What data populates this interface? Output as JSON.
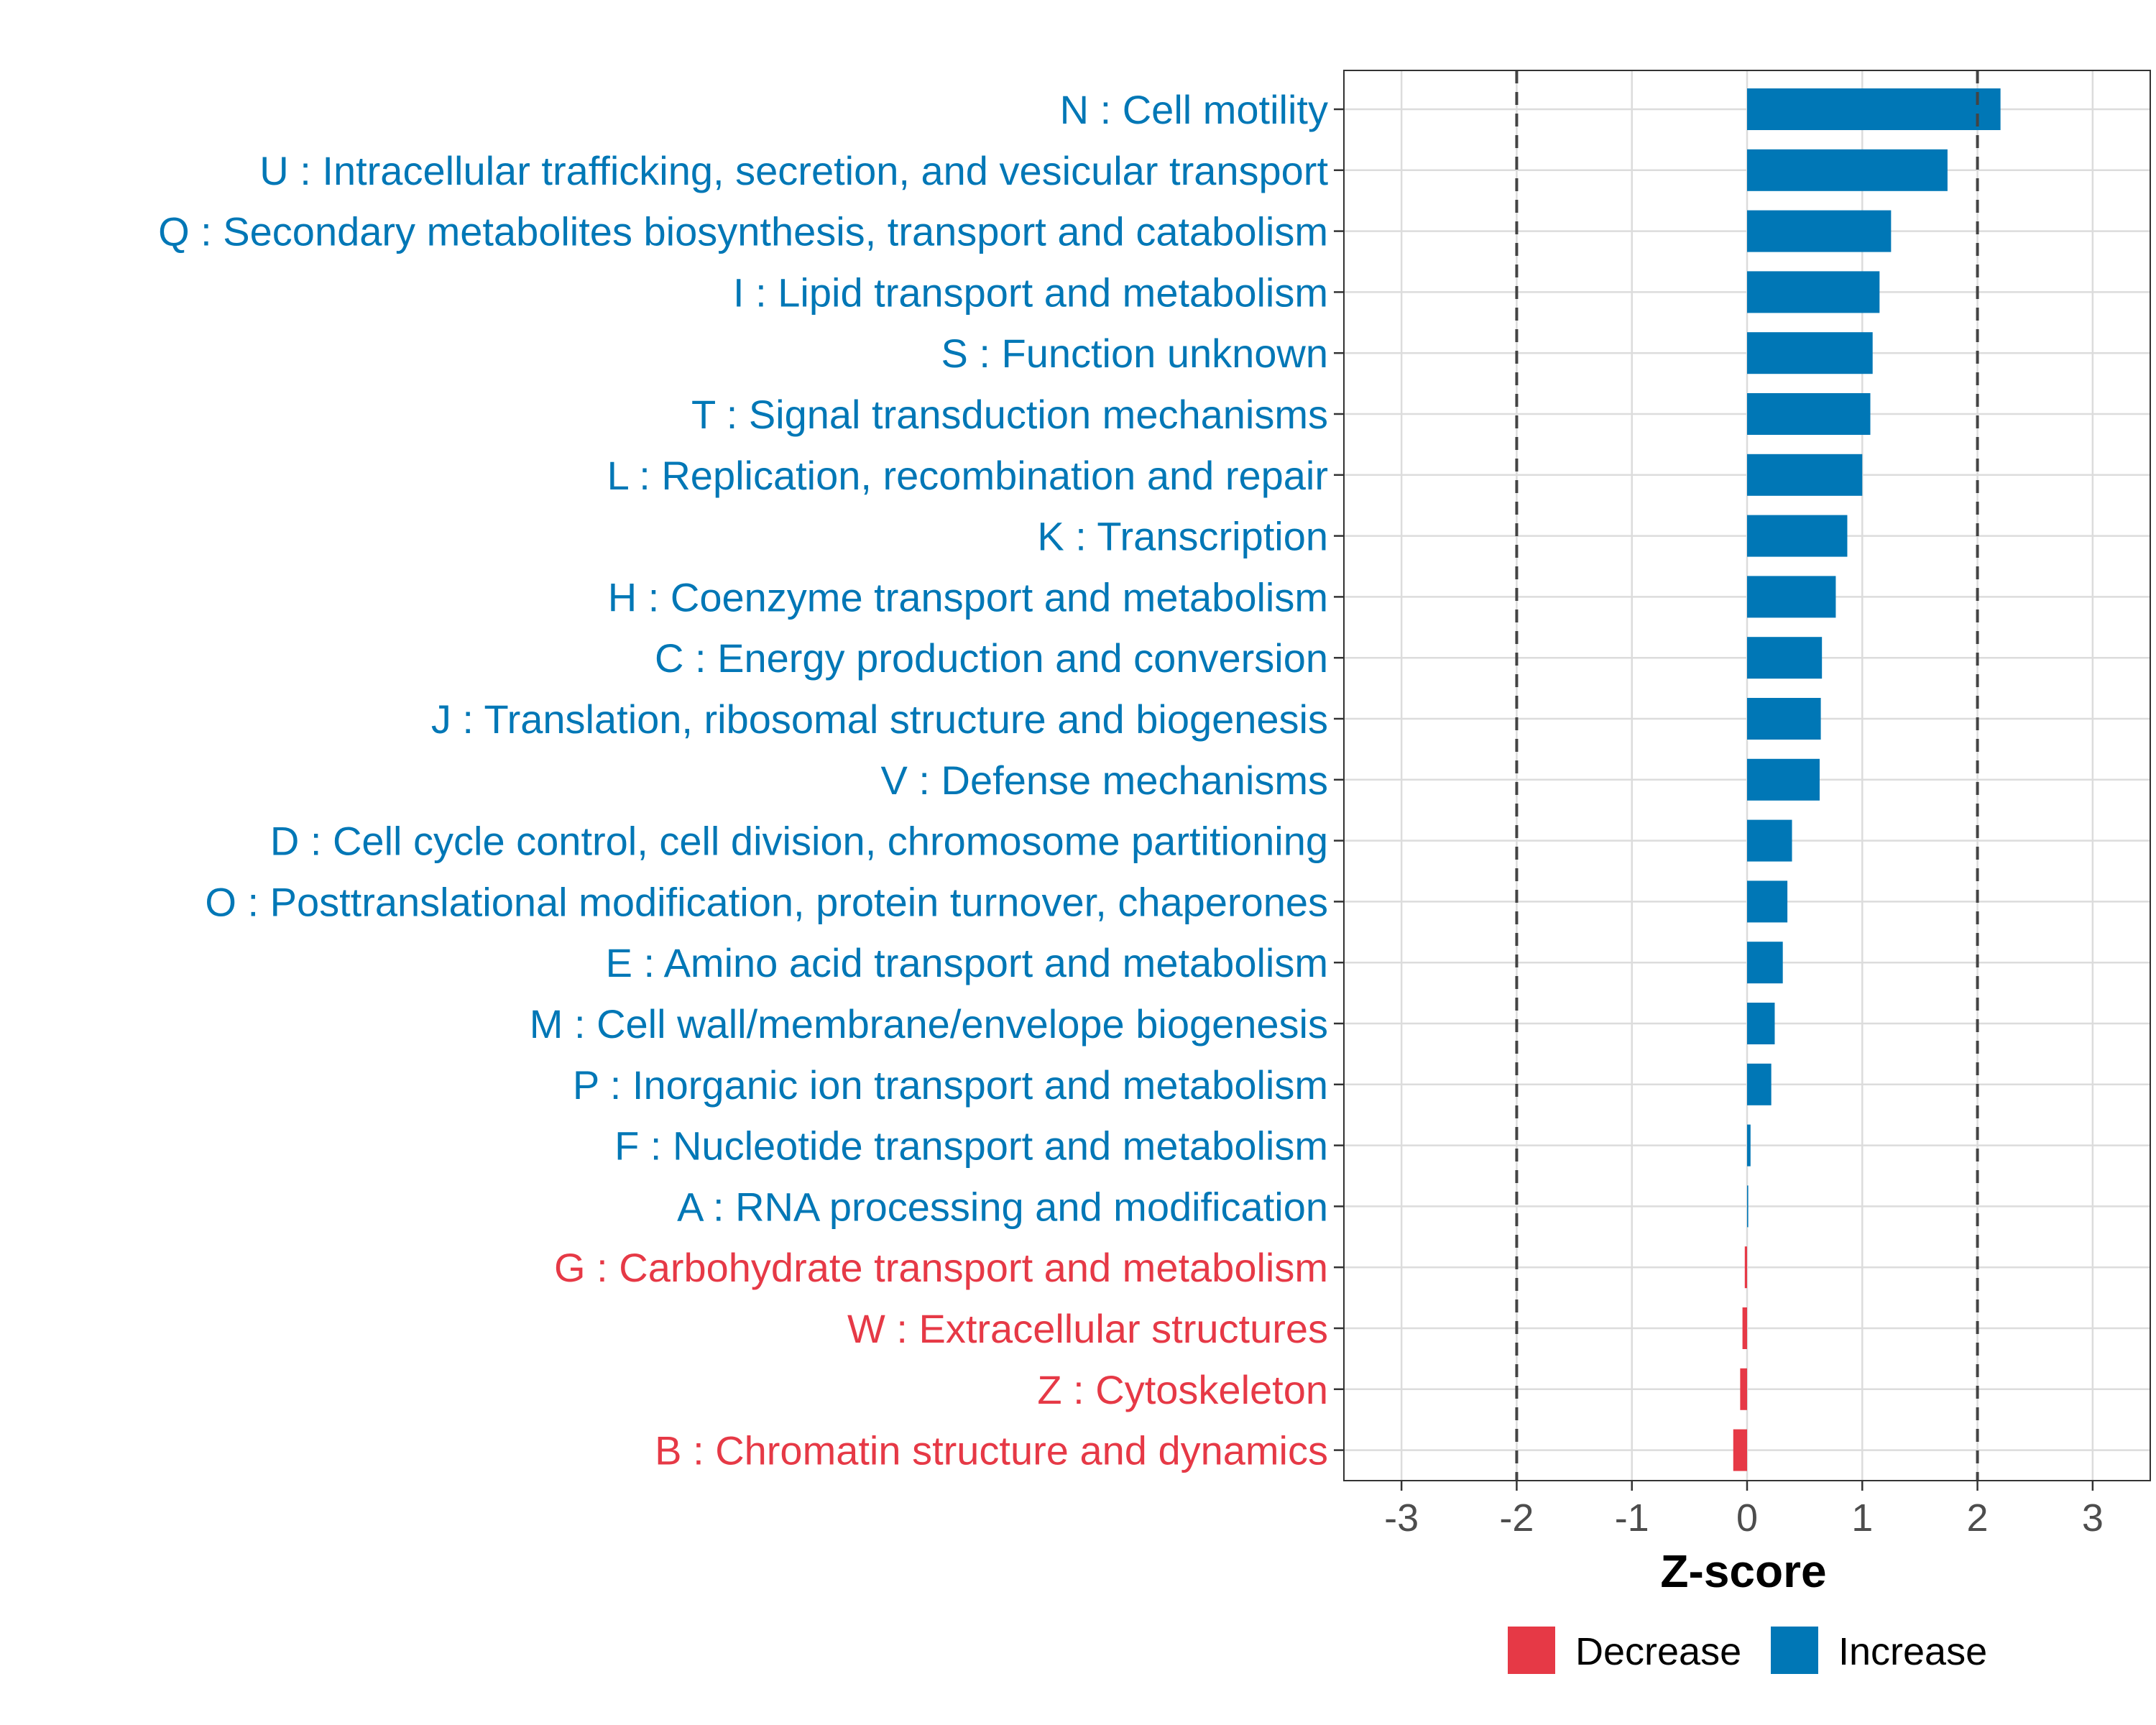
{
  "chart_data": {
    "type": "bar",
    "orientation": "horizontal",
    "xlabel": "Z-score",
    "xlim": [
      -3.5,
      3.5
    ],
    "xticks": [
      -3,
      -2,
      -1,
      0,
      1,
      2,
      3
    ],
    "tick_labels": [
      "-3",
      "-2",
      "-1",
      "0",
      "1",
      "2",
      "3"
    ],
    "reference_lines": [
      -2,
      2
    ],
    "grid": true,
    "legend_position": "bottom",
    "colors": {
      "Decrease": "#E63946",
      "Increase": "#0077B6"
    },
    "legend": [
      {
        "label": "Decrease",
        "color": "#E63946"
      },
      {
        "label": "Increase",
        "color": "#0077B6"
      }
    ],
    "categories": [
      "N : Cell motility",
      "U : Intracellular trafficking, secretion, and vesicular transport",
      "Q : Secondary metabolites biosynthesis, transport and catabolism",
      "I : Lipid transport and metabolism",
      "S : Function unknown",
      "T : Signal transduction mechanisms",
      "L : Replication, recombination and repair",
      "K : Transcription",
      "H : Coenzyme transport and metabolism",
      "C : Energy production and conversion",
      "J : Translation, ribosomal structure and biogenesis",
      "V : Defense mechanisms",
      "D : Cell cycle control, cell division, chromosome partitioning",
      "O : Posttranslational modification, protein turnover, chaperones",
      "E : Amino acid transport and metabolism",
      "M : Cell wall/membrane/envelope biogenesis",
      "P : Inorganic ion transport and metabolism",
      "F : Nucleotide transport and metabolism",
      "A : RNA processing and modification",
      "G : Carbohydrate transport and metabolism",
      "W : Extracellular structures",
      "Z : Cytoskeleton",
      "B : Chromatin structure and dynamics"
    ],
    "values": [
      2.2,
      1.74,
      1.25,
      1.15,
      1.09,
      1.07,
      1.0,
      0.87,
      0.77,
      0.65,
      0.64,
      0.63,
      0.39,
      0.35,
      0.31,
      0.24,
      0.21,
      0.03,
      0.01,
      -0.02,
      -0.04,
      -0.06,
      -0.12
    ],
    "groups": [
      "Increase",
      "Increase",
      "Increase",
      "Increase",
      "Increase",
      "Increase",
      "Increase",
      "Increase",
      "Increase",
      "Increase",
      "Increase",
      "Increase",
      "Increase",
      "Increase",
      "Increase",
      "Increase",
      "Increase",
      "Increase",
      "Increase",
      "Decrease",
      "Decrease",
      "Decrease",
      "Decrease"
    ]
  }
}
